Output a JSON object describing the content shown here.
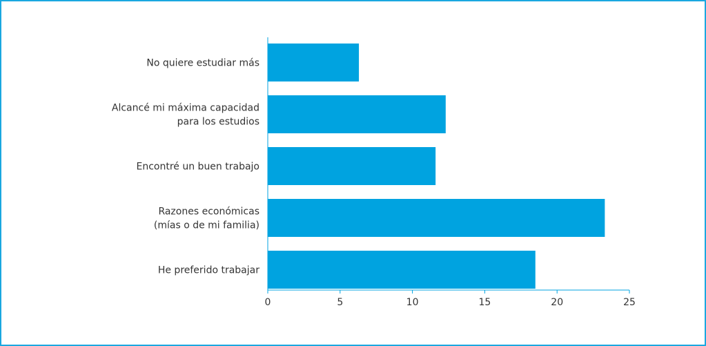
{
  "colors": {
    "bar": "#00a3e0",
    "frame": "#1aa7e0",
    "axis": "#00a3e0",
    "text": "#333333"
  },
  "chart_data": {
    "type": "bar",
    "orientation": "horizontal",
    "categories": [
      [
        "No quiere estudiar más"
      ],
      [
        "Alcancé mi máxima capacidad",
        "para los estudios"
      ],
      [
        "Encontré un buen trabajo"
      ],
      [
        "Razones económicas",
        "(mías o de mi familia)"
      ],
      [
        "He preferido trabajar"
      ]
    ],
    "values": [
      6.3,
      12.3,
      11.6,
      23.3,
      18.5
    ],
    "xlim": [
      0,
      25
    ],
    "xticks": [
      "0",
      "5",
      "10",
      "15",
      "20",
      "25"
    ],
    "title": "",
    "xlabel": "",
    "ylabel": "",
    "grid": false,
    "legend": "none"
  }
}
